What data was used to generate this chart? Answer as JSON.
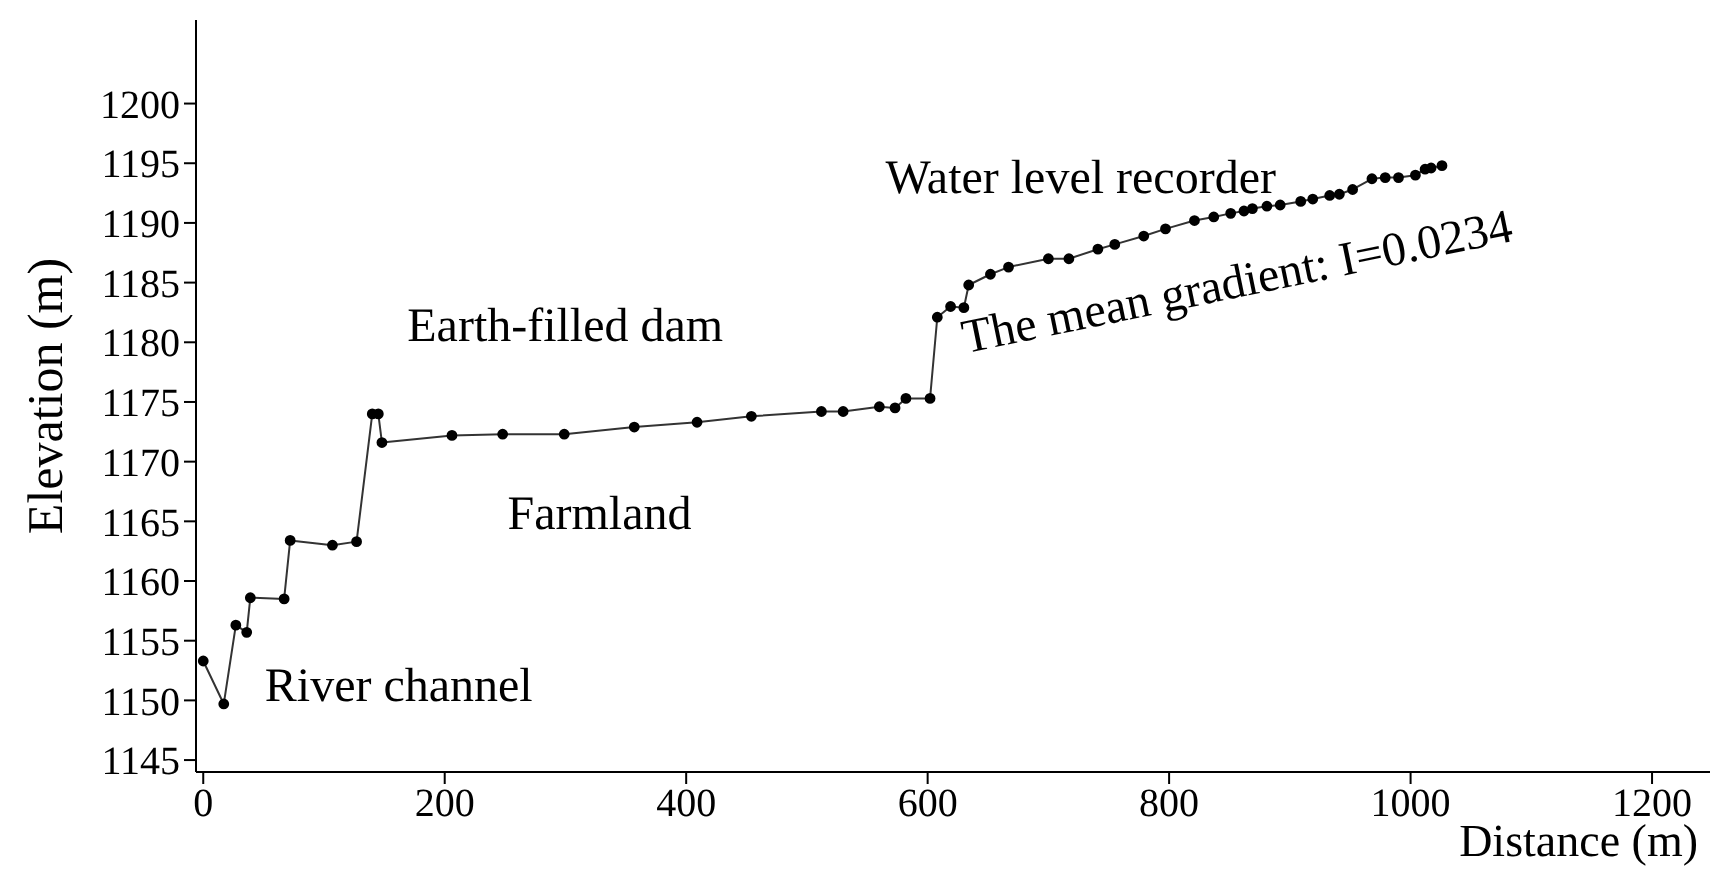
{
  "chart_data": {
    "type": "line",
    "xlabel": "Distance (m)",
    "ylabel": "Elevation (m)",
    "x": [
      0,
      17,
      27,
      36,
      39,
      67,
      72,
      107,
      127,
      140,
      145,
      148,
      206,
      248,
      299,
      357,
      409,
      454,
      512,
      530,
      560,
      573,
      582,
      602,
      608,
      619,
      630,
      634,
      652,
      667,
      700,
      717,
      741,
      755,
      779,
      797,
      821,
      837,
      851,
      862,
      869,
      881,
      892,
      909,
      919,
      933,
      941,
      952,
      968,
      979,
      990,
      1004,
      1012,
      1017,
      1026
    ],
    "series": [
      {
        "color": "#333333",
        "values": [
          1153.3,
          1149.7,
          1156.3,
          1155.7,
          1158.6,
          1158.5,
          1163.4,
          1163.0,
          1163.3,
          1174.0,
          1174.0,
          1171.6,
          1172.2,
          1172.3,
          1172.3,
          1172.9,
          1173.3,
          1173.8,
          1174.2,
          1174.2,
          1174.6,
          1174.5,
          1175.3,
          1175.3,
          1182.1,
          1183.0,
          1182.9,
          1184.8,
          1185.7,
          1186.3,
          1187.0,
          1187.0,
          1187.8,
          1188.2,
          1188.9,
          1189.5,
          1190.2,
          1190.5,
          1190.8,
          1191.0,
          1191.2,
          1191.4,
          1191.5,
          1191.8,
          1192.0,
          1192.3,
          1192.4,
          1192.8,
          1193.7,
          1193.8,
          1193.8,
          1194.0,
          1194.5,
          1194.6,
          1194.8
        ]
      }
    ],
    "xlim": [
      -6,
      1248
    ],
    "xticks": [
      0,
      200,
      400,
      600,
      800,
      1000,
      1200
    ],
    "ylim": [
      1144,
      1207
    ],
    "yticks": [
      1145,
      1150,
      1155,
      1160,
      1165,
      1170,
      1175,
      1180,
      1185,
      1190,
      1195,
      1200
    ],
    "grid": false,
    "marker": "circle",
    "line_style": "solid",
    "annotations": [
      "River channel",
      "Earth-filled dam",
      "Farmland",
      "Water level recorder",
      "The mean gradient: I=0.0234"
    ]
  }
}
